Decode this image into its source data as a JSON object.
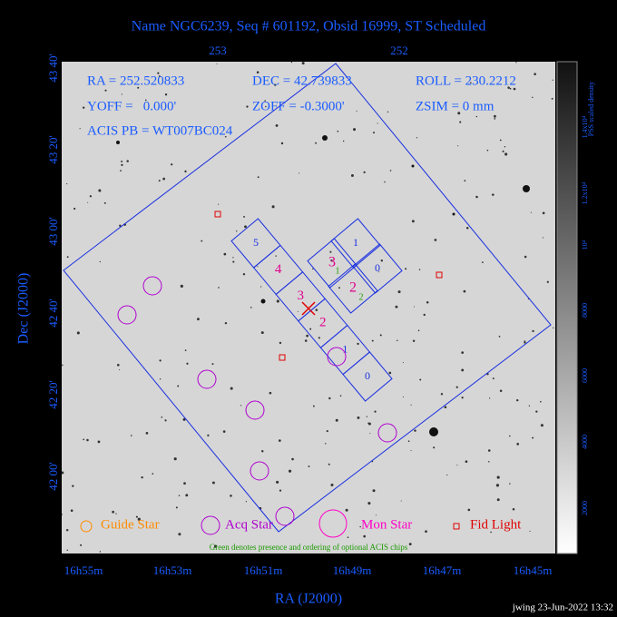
{
  "title": "Name NGC6239, Seq # 601192, Obsid 16999, ST Scheduled",
  "axes": {
    "x_label": "RA (J2000)",
    "y_label": "Dec (J2000)",
    "top_ticks": [
      "253",
      "252"
    ],
    "bottom_ticks": [
      "16h55m",
      "16h53m",
      "16h51m",
      "16h49m",
      "16h47m",
      "16h45m"
    ],
    "left_ticks": [
      "43 40'",
      "43 20'",
      "43 00'",
      "42 40'",
      "42 20'",
      "42 00'"
    ]
  },
  "info": {
    "ra": "RA = 252.520833",
    "dec": "DEC = 42.739833",
    "roll": "ROLL = 230.2212",
    "yoff": "YOFF =   0.000'",
    "zoff": "ZOFF = -0.3000'",
    "zsim": "ZSIM = 0 mm",
    "acis_pb": "ACIS PB = WT007BC024"
  },
  "acis_i": {
    "chips": [
      "1",
      "0",
      "3",
      "2"
    ],
    "optional": [
      "1",
      "2"
    ]
  },
  "acis_s": {
    "chips": [
      "5",
      "4",
      "3",
      "2",
      "1",
      "0"
    ]
  },
  "legend": {
    "guide": "Guide Star",
    "acq": "Acq Star",
    "mon": "Mon Star",
    "fid": "Fid Light"
  },
  "note": "Green denotes presence and ordering of optional ACIS chips",
  "colorbar": {
    "title": "PSS scaled density",
    "ticks": [
      "2000",
      "4000",
      "6000",
      "8000",
      "10⁴",
      "1.2x10⁴",
      "1.4x10⁴"
    ]
  },
  "footer": "jwing 23-Jun-2022 13:32"
}
